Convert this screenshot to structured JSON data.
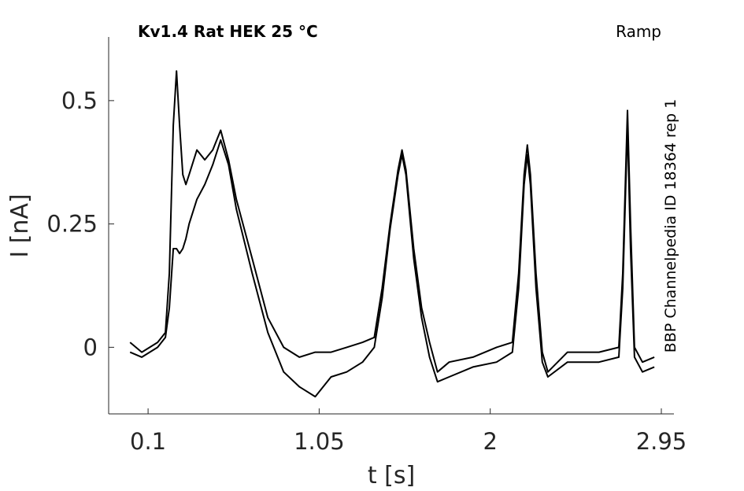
{
  "chart_data": {
    "type": "line",
    "title": "Kv1.4  Rat  HEK  25 °C",
    "subtitle": "Ramp",
    "annotation": "BBP Channelpedia ID 18364 rep 1",
    "xlabel": "t [s]",
    "ylabel": "I [nA]",
    "xlim": [
      -0.119,
      3.02
    ],
    "ylim": [
      -0.135,
      0.629
    ],
    "xticks": [
      0.1,
      1.05,
      2,
      2.95
    ],
    "yticks": [
      0,
      0.25,
      0.5
    ],
    "grid": false,
    "x": [
      0.0,
      0.065,
      0.153,
      0.196,
      0.218,
      0.24,
      0.258,
      0.275,
      0.293,
      0.31,
      0.328,
      0.371,
      0.415,
      0.459,
      0.503,
      0.547,
      0.59,
      0.678,
      0.765,
      0.853,
      0.94,
      1.028,
      1.116,
      1.203,
      1.291,
      1.356,
      1.4,
      1.444,
      1.488,
      1.51,
      1.532,
      1.575,
      1.619,
      1.663,
      1.707,
      1.772,
      1.904,
      2.035,
      2.123,
      2.158,
      2.188,
      2.206,
      2.223,
      2.254,
      2.289,
      2.32,
      2.429,
      2.604,
      2.714,
      2.736,
      2.762,
      2.779,
      2.801,
      2.845,
      2.911
    ],
    "series": [
      {
        "color": "#000000",
        "values": [
          0.01,
          -0.01,
          0.01,
          0.03,
          0.15,
          0.45,
          0.56,
          0.45,
          0.35,
          0.33,
          0.35,
          0.4,
          0.38,
          0.4,
          0.44,
          0.38,
          0.3,
          0.18,
          0.06,
          0.0,
          -0.02,
          -0.01,
          -0.01,
          0.0,
          0.01,
          0.02,
          0.12,
          0.25,
          0.36,
          0.4,
          0.36,
          0.2,
          0.08,
          0.01,
          -0.05,
          -0.03,
          -0.02,
          0.0,
          0.01,
          0.15,
          0.35,
          0.41,
          0.35,
          0.15,
          -0.01,
          -0.05,
          -0.01,
          -0.01,
          0.0,
          0.15,
          0.48,
          0.25,
          0.0,
          -0.03,
          -0.02
        ]
      },
      {
        "color": "#000000",
        "values": [
          -0.01,
          -0.02,
          0.0,
          0.02,
          0.08,
          0.2,
          0.2,
          0.19,
          0.2,
          0.22,
          0.25,
          0.3,
          0.33,
          0.37,
          0.42,
          0.37,
          0.28,
          0.15,
          0.03,
          -0.05,
          -0.08,
          -0.1,
          -0.06,
          -0.05,
          -0.03,
          0.0,
          0.1,
          0.24,
          0.35,
          0.39,
          0.35,
          0.18,
          0.06,
          -0.02,
          -0.07,
          -0.06,
          -0.04,
          -0.03,
          -0.01,
          0.12,
          0.33,
          0.39,
          0.33,
          0.12,
          -0.03,
          -0.06,
          -0.03,
          -0.03,
          -0.02,
          0.12,
          0.45,
          0.2,
          -0.02,
          -0.05,
          -0.04
        ]
      }
    ]
  }
}
